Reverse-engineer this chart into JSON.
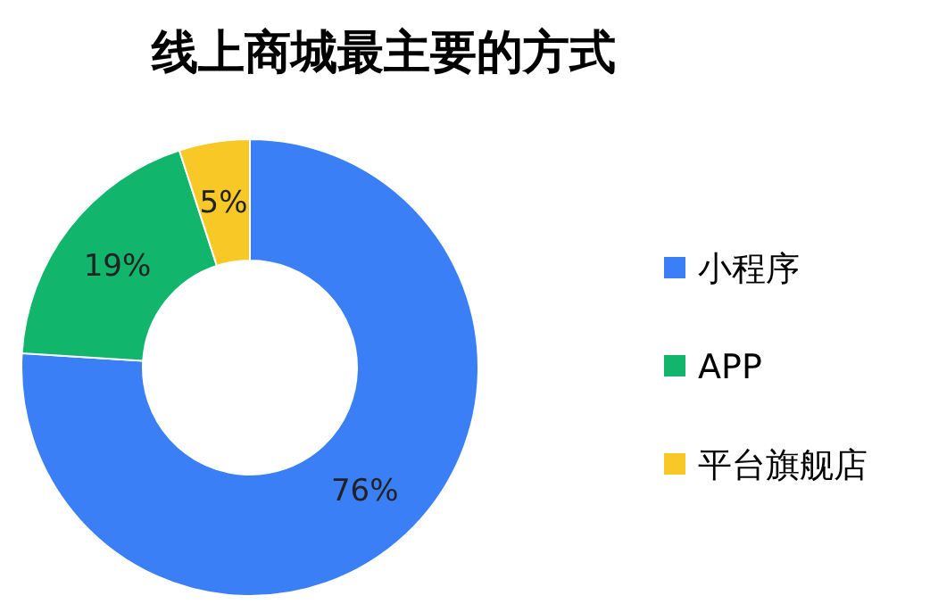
{
  "chart_data": {
    "type": "donut",
    "title": "线上商城最主要的方式",
    "categories": [
      "小程序",
      "APP",
      "平台旗舰店"
    ],
    "values": [
      76,
      19,
      5
    ],
    "colors": [
      "#3a7ff6",
      "#11b56b",
      "#f8c926"
    ],
    "value_labels": [
      "76%",
      "19%",
      "5%"
    ],
    "legend": "right"
  }
}
